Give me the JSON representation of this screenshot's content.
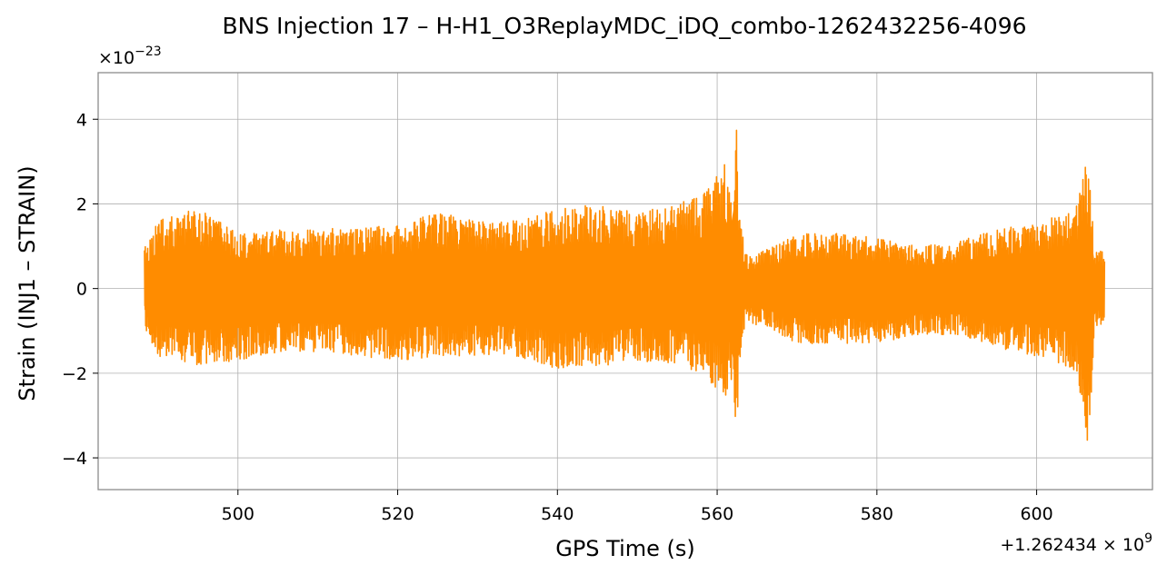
{
  "chart_data": {
    "type": "line",
    "title": "BNS Injection 17 – H-H1_O3ReplayMDC_iDQ_combo-1262432256-4096",
    "xlabel": "GPS Time (s)",
    "ylabel": "Strain (INJ1 – STRAIN)",
    "x_offset_label": "+1.262434 × 10",
    "x_offset_exponent": "9",
    "y_scale_label": "×10",
    "y_scale_exponent": "−23",
    "xlim": [
      482.5,
      614.5
    ],
    "ylim": [
      -4.75,
      5.1
    ],
    "x_ticks": [
      500,
      520,
      540,
      560,
      580,
      600
    ],
    "x_tick_labels": [
      "500",
      "520",
      "540",
      "560",
      "580",
      "600"
    ],
    "y_ticks": [
      -4,
      -2,
      0,
      2,
      4
    ],
    "y_tick_labels": [
      "−4",
      "−2",
      "0",
      "2",
      "4"
    ],
    "grid": true,
    "color": "#ff8c00",
    "series": [
      {
        "x_range": [
          488.3,
          608.5
        ],
        "envelope": {
          "x": [
            488.3,
            490,
            495,
            500,
            505,
            510,
            515,
            520,
            525,
            530,
            535,
            540,
            545,
            550,
            555,
            558,
            559.5,
            561,
            562,
            562.35,
            562.7,
            563.5,
            566,
            570,
            575,
            580,
            585,
            590,
            595,
            600,
            603,
            605,
            606.5,
            607.2,
            608.5
          ],
          "upper": [
            1.0,
            1.6,
            1.9,
            1.3,
            1.4,
            1.4,
            1.45,
            1.5,
            1.8,
            1.6,
            1.6,
            1.9,
            2.0,
            1.8,
            2.0,
            2.2,
            2.5,
            3.0,
            2.2,
            4.7,
            2.0,
            0.8,
            0.9,
            1.3,
            1.3,
            1.2,
            1.0,
            1.1,
            1.4,
            1.6,
            1.8,
            2.0,
            3.2,
            1.0,
            0.9
          ],
          "lower": [
            -0.9,
            -1.6,
            -1.8,
            -1.7,
            -1.5,
            -1.5,
            -1.6,
            -1.7,
            -1.6,
            -1.6,
            -1.6,
            -1.9,
            -1.9,
            -1.7,
            -1.8,
            -2.0,
            -2.3,
            -2.7,
            -2.0,
            -4.3,
            -2.0,
            -0.8,
            -0.9,
            -1.3,
            -1.3,
            -1.3,
            -1.1,
            -1.1,
            -1.4,
            -1.6,
            -1.8,
            -2.0,
            -4.0,
            -1.0,
            -0.9
          ]
        }
      }
    ]
  }
}
